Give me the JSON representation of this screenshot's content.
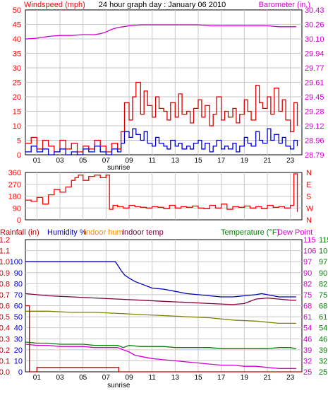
{
  "colors": {
    "wind": "#ff0000",
    "baro": "#d000d0",
    "humidity": "#0000c0",
    "indoor_hum": "#ff8800",
    "indoor_temp": "#800040",
    "temperature": "#008000",
    "dewpoint": "#d000d0",
    "rain": "#c00000",
    "olive": "#808000",
    "gust": "#dd0000",
    "avgwind": "#0000c8",
    "grid": "#c8c8c8",
    "frame": "#000000"
  },
  "chart_data": [
    {
      "type": "line",
      "id": "wind",
      "title": "24 hour graph day : January 06 2010",
      "left_axis_label": "Windspeed (mph)",
      "right_axis_label": "Barometer (in.)",
      "left_ticks": [
        "0",
        "5",
        "10",
        "15",
        "20",
        "25",
        "30",
        "35",
        "40",
        "45",
        "50"
      ],
      "left_range": [
        0,
        50
      ],
      "right_ticks": [
        "28.79",
        "28.96",
        "29.12",
        "29.28",
        "29.45",
        "29.61",
        "29.77",
        "29.94",
        "30.10",
        "30.26",
        "30.43"
      ],
      "right_range": [
        28.79,
        30.43
      ],
      "x_ticks": [
        "01",
        "03",
        "05",
        "07",
        "09",
        "11",
        "13",
        "15",
        "17",
        "19",
        "21",
        "23"
      ],
      "x_range": [
        0,
        24
      ],
      "sunrise_label": "sunrise",
      "sunrise_hour": 8.1,
      "series": [
        {
          "key": "barometer",
          "color_key": "baro",
          "axis": "right",
          "x": [
            0,
            1,
            2,
            3,
            4,
            5,
            6,
            6.5,
            7,
            7.5,
            8,
            8.5,
            9,
            10,
            11,
            12,
            13,
            14,
            15,
            16,
            17,
            18,
            19,
            20,
            21,
            22,
            23,
            23.5
          ],
          "y": [
            30.1,
            30.11,
            30.13,
            30.14,
            30.14,
            30.15,
            30.15,
            30.16,
            30.18,
            30.21,
            30.23,
            30.24,
            30.25,
            30.26,
            30.26,
            30.26,
            30.26,
            30.26,
            30.26,
            30.25,
            30.25,
            30.25,
            30.25,
            30.25,
            30.25,
            30.24,
            30.24,
            30.24
          ]
        },
        {
          "key": "gust",
          "color_key": "gust",
          "axis": "left",
          "x": [
            0,
            0.5,
            1,
            1.5,
            2,
            2.5,
            3,
            3.5,
            4,
            4.5,
            5,
            5.5,
            6,
            6.5,
            7,
            7.5,
            8,
            8.3,
            8.6,
            9,
            9.3,
            9.6,
            10,
            10.3,
            10.6,
            11,
            11.3,
            11.6,
            12,
            12.3,
            12.6,
            13,
            13.3,
            13.6,
            14,
            14.3,
            14.6,
            15,
            15.3,
            15.6,
            16,
            16.3,
            16.6,
            17,
            17.3,
            17.6,
            18,
            18.3,
            18.6,
            19,
            19.3,
            19.6,
            20,
            20.3,
            20.6,
            21,
            21.3,
            21.6,
            22,
            22.3,
            22.6,
            23,
            23.3,
            23.6
          ],
          "y": [
            4,
            6,
            2,
            5,
            3,
            1,
            5,
            2,
            4,
            1,
            3,
            2,
            5,
            3,
            1,
            4,
            2,
            8,
            18,
            12,
            20,
            25,
            14,
            22,
            17,
            13,
            20,
            16,
            15,
            12,
            18,
            13,
            21,
            14,
            15,
            11,
            16,
            19,
            13,
            17,
            10,
            14,
            20,
            12,
            15,
            13,
            16,
            11,
            14,
            19,
            15,
            12,
            24,
            18,
            16,
            20,
            14,
            23,
            15,
            19,
            12,
            8,
            18,
            10
          ]
        },
        {
          "key": "avgwind",
          "color_key": "avgwind",
          "axis": "left",
          "x": [
            0,
            0.5,
            1,
            1.5,
            2,
            2.5,
            3,
            3.5,
            4,
            4.5,
            5,
            5.5,
            6,
            6.5,
            7,
            7.5,
            8,
            8.3,
            8.6,
            9,
            9.3,
            9.6,
            10,
            10.3,
            10.6,
            11,
            11.3,
            11.6,
            12,
            12.3,
            12.6,
            13,
            13.3,
            13.6,
            14,
            14.3,
            14.6,
            15,
            15.3,
            15.6,
            16,
            16.3,
            16.6,
            17,
            17.3,
            17.6,
            18,
            18.3,
            18.6,
            19,
            19.3,
            19.6,
            20,
            20.3,
            20.6,
            21,
            21.3,
            21.6,
            22,
            22.3,
            22.6,
            23,
            23.3,
            23.6
          ],
          "y": [
            1,
            3,
            1,
            2,
            0,
            1,
            2,
            0,
            1,
            0,
            2,
            1,
            3,
            1,
            0,
            2,
            1,
            4,
            8,
            6,
            9,
            7,
            5,
            8,
            4,
            3,
            6,
            4,
            3,
            2,
            5,
            3,
            4,
            2,
            3,
            2,
            4,
            5,
            2,
            4,
            1,
            3,
            5,
            2,
            3,
            2,
            4,
            1,
            3,
            6,
            4,
            3,
            8,
            5,
            4,
            9,
            5,
            7,
            4,
            6,
            3,
            2,
            5,
            3
          ]
        }
      ]
    },
    {
      "type": "line",
      "id": "direction",
      "left_ticks": [
        "0",
        "90",
        "180",
        "270",
        "360"
      ],
      "left_range": [
        0,
        360
      ],
      "right_ticks": [
        "N",
        "W",
        "S",
        "E",
        "N"
      ],
      "series": [
        {
          "key": "wind_direction",
          "color_key": "wind",
          "x": [
            0,
            0.5,
            1,
            1.5,
            2,
            2.5,
            3,
            3.5,
            4,
            4.3,
            4.6,
            5,
            5.5,
            6,
            6.5,
            7,
            7.3,
            7.6,
            8,
            8.5,
            9,
            9.5,
            10,
            10.5,
            11,
            11.5,
            12,
            12.5,
            13,
            13.5,
            14,
            14.5,
            15,
            15.5,
            16,
            16.5,
            17,
            17.5,
            18,
            18.5,
            19,
            19.5,
            20,
            20.5,
            21,
            21.5,
            22,
            22.5,
            23,
            23.3,
            23.6
          ],
          "y": [
            150,
            140,
            170,
            120,
            190,
            230,
            210,
            250,
            300,
            320,
            340,
            300,
            330,
            340,
            320,
            340,
            80,
            110,
            100,
            90,
            110,
            100,
            95,
            90,
            100,
            95,
            85,
            110,
            90,
            100,
            95,
            105,
            90,
            85,
            110,
            90,
            120,
            80,
            100,
            95,
            105,
            90,
            100,
            85,
            110,
            95,
            100,
            90,
            110,
            350,
            60
          ]
        }
      ]
    },
    {
      "type": "line",
      "id": "temp_hum",
      "labels": {
        "rainfall": "Rainfall (in)",
        "humidity": "Humidity %",
        "indoor_hum": "Indoor hum",
        "indoor_temp": "Indoor temp",
        "temperature": "Temperature (°F)",
        "dewpoint": "Dew Point"
      },
      "rain_ticks": [
        "0.0",
        "0.1",
        "0.2",
        "0.3",
        "0.4",
        "0.5",
        "0.6",
        "0.7",
        "0.8",
        "0.9",
        "1.0",
        "1.1",
        "1.2"
      ],
      "rain_range": [
        0,
        1.2
      ],
      "hum_ticks": [
        "0",
        "10",
        "20",
        "30",
        "40",
        "50",
        "60",
        "70",
        "80",
        "90",
        "100"
      ],
      "hum_range": [
        0,
        100
      ],
      "temp_ticks": [
        "25",
        "32",
        "39",
        "46",
        "54",
        "61",
        "68",
        "75",
        "82",
        "90",
        "97",
        "106",
        "115"
      ],
      "temp_range": [
        25,
        115
      ],
      "x_ticks": [
        "01",
        "03",
        "05",
        "07",
        "09",
        "11",
        "13",
        "15",
        "17",
        "19",
        "21",
        "23"
      ],
      "sunrise_label": "sunrise",
      "sunrise_hour": 8.1,
      "series": [
        {
          "key": "humidity",
          "color_key": "humidity",
          "axis": "hum",
          "x": [
            0,
            1,
            2,
            3,
            4,
            5,
            6,
            7,
            7.8,
            8,
            8.3,
            8.6,
            9,
            9.5,
            10,
            11,
            12,
            13,
            14,
            15,
            16,
            17,
            18,
            19,
            20,
            20.5,
            21,
            21.5,
            22,
            23,
            23.5
          ],
          "y": [
            100,
            100,
            100,
            100,
            100,
            100,
            100,
            100,
            100,
            97,
            92,
            88,
            85,
            82,
            80,
            76,
            75,
            73,
            71,
            70,
            69,
            68,
            68,
            69,
            70,
            71,
            70,
            69,
            68,
            68,
            68
          ]
        },
        {
          "key": "indoor_temp",
          "color_key": "indoor_temp",
          "axis": "hum",
          "x": [
            0,
            2,
            4,
            6,
            8,
            10,
            12,
            14,
            16,
            18,
            19,
            20,
            21,
            22,
            23,
            23.5
          ],
          "y": [
            71,
            69,
            68,
            67,
            66,
            65,
            64,
            63,
            62,
            61,
            62,
            66,
            67,
            66,
            65,
            65
          ]
        },
        {
          "key": "indoor_hum",
          "color_key": "olive",
          "axis": "hum",
          "x": [
            0,
            2,
            4,
            6,
            8,
            10,
            12,
            14,
            16,
            18,
            20,
            22,
            23.5
          ],
          "y": [
            55,
            55,
            54,
            54,
            53,
            52,
            51,
            50,
            49,
            47,
            46,
            44,
            44
          ]
        },
        {
          "key": "temperature",
          "color_key": "temperature",
          "axis": "hum",
          "x": [
            0,
            1,
            2,
            3,
            4,
            5,
            6,
            7,
            8,
            8.5,
            9,
            10,
            11,
            12,
            13,
            14,
            15,
            16,
            17,
            18,
            19,
            20,
            21,
            22,
            23,
            23.5
          ],
          "y": [
            27,
            26,
            26,
            25,
            25,
            25,
            24,
            24,
            24,
            22,
            24,
            23,
            23,
            23,
            22,
            22,
            22,
            22,
            21,
            21,
            21,
            21,
            21,
            22,
            22,
            21
          ]
        },
        {
          "key": "dewpoint",
          "color_key": "dewpoint",
          "axis": "hum",
          "x": [
            0,
            1,
            2,
            3,
            4,
            5,
            6,
            7,
            8,
            8.5,
            9,
            9.5,
            10,
            11,
            12,
            13,
            14,
            15,
            16,
            17,
            18,
            19,
            20,
            21,
            22,
            23,
            23.5
          ],
          "y": [
            25,
            24,
            24,
            23,
            23,
            23,
            22,
            22,
            22,
            20,
            18,
            15,
            14,
            12,
            11,
            10,
            9,
            8,
            7,
            6,
            6,
            5,
            5,
            4,
            3,
            3,
            3
          ]
        },
        {
          "key": "rainfall",
          "color_key": "rain",
          "axis": "rain",
          "x": [
            0,
            0.3,
            0.35,
            1,
            4,
            8,
            8.1,
            24
          ],
          "y": [
            0.6,
            0.6,
            0.0,
            0.04,
            0.04,
            0.04,
            0.0,
            0.0
          ]
        }
      ]
    }
  ]
}
